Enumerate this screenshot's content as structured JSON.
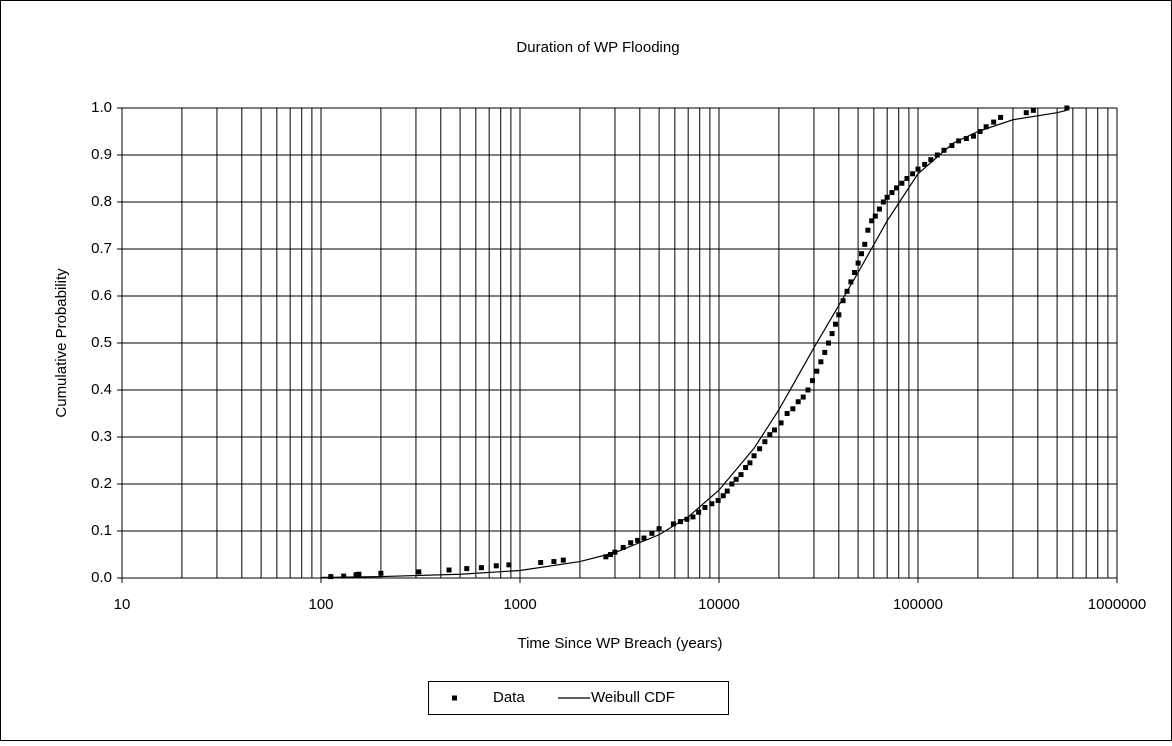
{
  "chart_data": {
    "type": "scatter",
    "title": "Duration of WP Flooding",
    "x_label": "Time Since WP Breach (years)",
    "y_label": "Cumulative Probability",
    "log_x": true,
    "grid": true,
    "legend": "bottom",
    "xlim": [
      10,
      1000000
    ],
    "ylim": [
      0,
      1
    ],
    "xticks": [
      10,
      100,
      1000,
      10000,
      100000,
      1000000
    ],
    "yticks": [
      {
        "value": 0,
        "label": "0.0"
      },
      0.1,
      0.2,
      0.3,
      0.4,
      0.5,
      0.6,
      0.7,
      0.8,
      0.9,
      {
        "value": 1,
        "label": "1.0"
      }
    ],
    "series": [
      {
        "name": "Data",
        "type": "scatter",
        "color": "#000000",
        "x": [
          112,
          130,
          150,
          155,
          200,
          310,
          440,
          540,
          640,
          760,
          880,
          1270,
          1480,
          1650,
          2700,
          2850,
          3000,
          3300,
          3600,
          3900,
          4200,
          4600,
          5000,
          5900,
          6400,
          6900,
          7400,
          7900,
          8500,
          9200,
          9900,
          10500,
          11000,
          11600,
          12200,
          12900,
          13600,
          14300,
          15000,
          16000,
          17000,
          18000,
          19000,
          20500,
          22000,
          23500,
          25000,
          26500,
          28000,
          29500,
          31000,
          32500,
          34000,
          35500,
          37000,
          38500,
          40000,
          42000,
          44000,
          46000,
          48000,
          50000,
          52000,
          54000,
          56000,
          58500,
          61000,
          64000,
          67000,
          70000,
          74000,
          78000,
          83000,
          88000,
          94000,
          100000,
          108000,
          116000,
          125000,
          135000,
          148000,
          160000,
          175000,
          190000,
          205000,
          220000,
          240000,
          260000,
          350000,
          380000,
          560000
        ],
        "values": [
          0.003,
          0.004,
          0.007,
          0.008,
          0.01,
          0.013,
          0.017,
          0.02,
          0.022,
          0.026,
          0.028,
          0.033,
          0.035,
          0.038,
          0.045,
          0.05,
          0.055,
          0.065,
          0.075,
          0.08,
          0.085,
          0.095,
          0.105,
          0.115,
          0.12,
          0.125,
          0.13,
          0.14,
          0.15,
          0.158,
          0.165,
          0.175,
          0.185,
          0.2,
          0.21,
          0.22,
          0.235,
          0.245,
          0.26,
          0.275,
          0.29,
          0.305,
          0.315,
          0.33,
          0.35,
          0.36,
          0.375,
          0.385,
          0.4,
          0.42,
          0.44,
          0.46,
          0.48,
          0.5,
          0.52,
          0.54,
          0.56,
          0.59,
          0.61,
          0.63,
          0.65,
          0.67,
          0.69,
          0.71,
          0.74,
          0.76,
          0.77,
          0.785,
          0.8,
          0.81,
          0.82,
          0.83,
          0.84,
          0.85,
          0.86,
          0.87,
          0.88,
          0.89,
          0.9,
          0.91,
          0.92,
          0.93,
          0.935,
          0.94,
          0.95,
          0.96,
          0.97,
          0.98,
          0.99,
          0.995,
          1.0
        ]
      },
      {
        "name": "Weibull CDF",
        "type": "line",
        "color": "#000000",
        "x": [
          100,
          200,
          500,
          1000,
          2000,
          3000,
          5000,
          7000,
          10000,
          15000,
          20000,
          30000,
          40000,
          50000,
          70000,
          100000,
          150000,
          200000,
          300000,
          500000,
          560000
        ],
        "values": [
          0.001,
          0.003,
          0.008,
          0.016,
          0.035,
          0.054,
          0.092,
          0.13,
          0.187,
          0.276,
          0.358,
          0.49,
          0.58,
          0.65,
          0.76,
          0.86,
          0.925,
          0.95,
          0.975,
          0.99,
          0.995
        ]
      }
    ]
  }
}
